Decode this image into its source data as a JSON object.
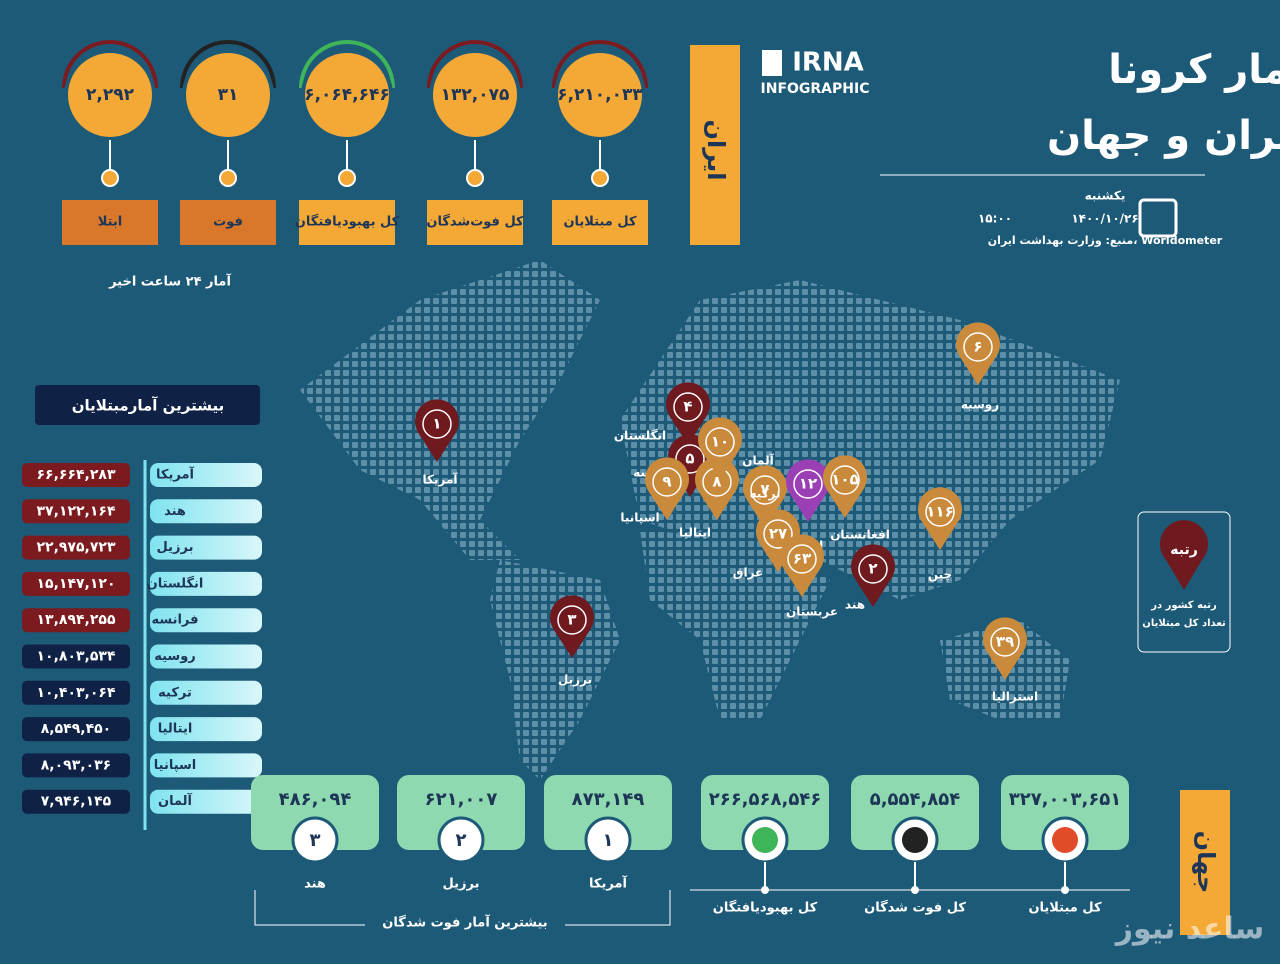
{
  "header": {
    "title_line1": "آمار کرونا",
    "title_line2": "در ایران و جهان",
    "logo": "IRNA",
    "logo_sub": "INFOGRAPHIC",
    "day": "یکشنبه",
    "date": "۱۴۰۰/۱۰/۲۶",
    "time": "۱۵:۰۰",
    "source": "منبع: وزارت بهداشت ایران، Worldometer"
  },
  "iran": {
    "label": "ایران",
    "caption": "آمار ۲۴ ساعت اخیر",
    "stats": [
      {
        "label": "کل مبتلایان",
        "value": "۶,۲۱۰,۰۳۳"
      },
      {
        "label": "کل فوت‌شدگان",
        "value": "۱۳۲,۰۷۵"
      },
      {
        "label": "کل بهبودیافتگان",
        "value": "۶,۰۶۴,۶۴۶"
      },
      {
        "label": "فوت",
        "value": "۳۱"
      },
      {
        "label": "ابتلا",
        "value": "۲,۲۹۲"
      }
    ]
  },
  "top_infected": {
    "title": "بیشترین آمارمبتلایان",
    "rows": [
      {
        "country": "آمریکا",
        "value": "۶۶,۶۶۴,۲۸۳"
      },
      {
        "country": "هند",
        "value": "۳۷,۱۲۲,۱۶۴"
      },
      {
        "country": "برزیل",
        "value": "۲۲,۹۷۵,۷۲۳"
      },
      {
        "country": "انگلستان",
        "value": "۱۵,۱۴۷,۱۲۰"
      },
      {
        "country": "فرانسه",
        "value": "۱۳,۸۹۴,۲۵۵"
      },
      {
        "country": "روسیه",
        "value": "۱۰,۸۰۳,۵۳۴"
      },
      {
        "country": "ترکیه",
        "value": "۱۰,۴۰۳,۰۶۴"
      },
      {
        "country": "ایتالیا",
        "value": "۸,۵۴۹,۴۵۰"
      },
      {
        "country": "اسپانیا",
        "value": "۸,۰۹۳,۰۳۶"
      },
      {
        "country": "آلمان",
        "value": "۷,۹۴۶,۱۴۵"
      }
    ]
  },
  "map": {
    "legend": {
      "title": "رتبه",
      "text": [
        "رتبه کشور در",
        "تعداد کل مبتلایان"
      ]
    },
    "pins": [
      {
        "rank": "۱",
        "country": "آمریکا"
      },
      {
        "rank": "۲",
        "country": "هند"
      },
      {
        "rank": "۳",
        "country": "برزیل"
      },
      {
        "rank": "۴",
        "country": "انگلستان"
      },
      {
        "rank": "۵",
        "country": "فرانسه"
      },
      {
        "rank": "۶",
        "country": "روسیه"
      },
      {
        "rank": "۷",
        "country": "ترکیه"
      },
      {
        "rank": "۸",
        "country": "ایتالیا"
      },
      {
        "rank": "۹",
        "country": "اسپانیا"
      },
      {
        "rank": "۱۰",
        "country": "آلمان"
      },
      {
        "rank": "۱۲",
        "country": "ایران"
      },
      {
        "rank": "۲۷",
        "country": "عراق"
      },
      {
        "rank": "۶۳",
        "country": "عربستان"
      },
      {
        "rank": "۱۰۵",
        "country": "افغانستان"
      },
      {
        "rank": "۱۱۶",
        "country": "چین"
      },
      {
        "rank": "۳۹",
        "country": "استرالیا"
      }
    ]
  },
  "world": {
    "label": "جهان",
    "stats": [
      {
        "label": "کل مبتلایان",
        "value": "۳۲۷,۰۰۳,۶۵۱"
      },
      {
        "label": "کل فوت شدگان",
        "value": "۵,۵۵۴,۸۵۴"
      },
      {
        "label": "کل بهبودیافتگان",
        "value": "۲۶۶,۵۶۸,۵۴۶"
      }
    ],
    "top_deaths": {
      "title": "بیشترین آمار فوت شدگان",
      "rows": [
        {
          "rank": "۱",
          "country": "آمریکا",
          "value": "۸۷۳,۱۴۹"
        },
        {
          "rank": "۲",
          "country": "برزیل",
          "value": "۶۲۱,۰۰۷"
        },
        {
          "rank": "۳",
          "country": "هند",
          "value": "۴۸۶,۰۹۴"
        }
      ]
    }
  },
  "watermark": "ساعد نیوز"
}
